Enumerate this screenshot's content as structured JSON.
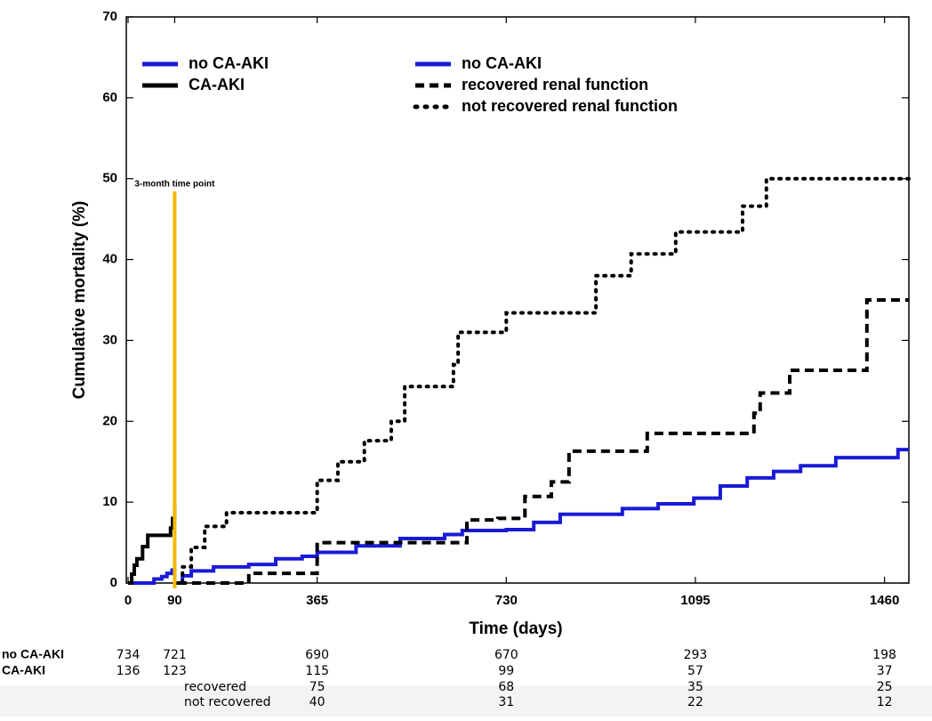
{
  "chart_data": {
    "type": "step",
    "x_label": "Time (days)",
    "y_label": "Cumulative mortality (%)",
    "xlim": [
      0,
      1507
    ],
    "ylim": [
      0,
      70
    ],
    "xticks": [
      0,
      90,
      365,
      730,
      1095,
      1460
    ],
    "yticks": [
      0,
      10,
      20,
      30,
      40,
      50,
      60,
      70
    ],
    "annotation": {
      "text": "3-month time point",
      "x": 90,
      "color": "#f5b800"
    },
    "series": [
      {
        "name": "no CA-AKI",
        "color": "#1a1ad6",
        "style": "solid",
        "x": [
          0,
          40,
          50,
          65,
          75,
          85,
          90
        ],
        "values": [
          0,
          0,
          0.5,
          0.8,
          1.2,
          1.6,
          1.9
        ]
      },
      {
        "name": "CA-AKI",
        "color": "#000000",
        "style": "solid",
        "x": [
          0,
          7,
          12,
          17,
          28,
          38,
          82,
          86,
          90
        ],
        "values": [
          0,
          1.1,
          2.2,
          3.0,
          4.5,
          5.9,
          6.8,
          8.0,
          9.6
        ]
      },
      {
        "name": "no CA-AKI",
        "color": "#1a1ad6",
        "style": "solid",
        "x": [
          90,
          105,
          122,
          165,
          233,
          285,
          336,
          365,
          440,
          525,
          611,
          645,
          730,
          783,
          834,
          954,
          1023,
          1092,
          1143,
          1195,
          1246,
          1298,
          1366,
          1486,
          1507
        ],
        "values": [
          0,
          0.9,
          1.5,
          2.0,
          2.3,
          3.0,
          3.3,
          3.8,
          4.6,
          5.5,
          6.0,
          6.5,
          6.6,
          7.5,
          8.5,
          9.2,
          9.8,
          10.5,
          12.0,
          13.0,
          13.8,
          14.5,
          15.5,
          16.5,
          16.5
        ]
      },
      {
        "name": "recovered renal function",
        "color": "#000000",
        "style": "dashed",
        "x": [
          96,
          233,
          365,
          654,
          714,
          766,
          817,
          851,
          1002,
          1208,
          1220,
          1277,
          1426,
          1507
        ],
        "values": [
          0,
          1.2,
          5.0,
          7.8,
          8.0,
          10.7,
          12.5,
          16.3,
          18.5,
          21.0,
          23.5,
          26.3,
          35.0,
          35.0
        ]
      },
      {
        "name": "not recovered renal function",
        "color": "#000000",
        "style": "dotted",
        "x": [
          90,
          105,
          122,
          148,
          190,
          365,
          405,
          456,
          508,
          534,
          628,
          637,
          730,
          903,
          971,
          1057,
          1186,
          1232,
          1507
        ],
        "values": [
          0,
          2.0,
          4.4,
          7.0,
          8.7,
          12.7,
          15.0,
          17.6,
          20.0,
          24.3,
          27.0,
          31.0,
          33.4,
          38.0,
          40.7,
          43.4,
          46.6,
          50.0,
          50.0
        ]
      }
    ],
    "risk_table": [
      {
        "label": "no CA-AKI",
        "values": [
          734,
          721,
          690,
          670,
          293,
          198
        ]
      },
      {
        "label": "CA-AKI",
        "values": [
          136,
          123,
          115,
          99,
          57,
          37
        ]
      },
      {
        "label": "recovered",
        "values": [
          75,
          68,
          35,
          25
        ]
      },
      {
        "label": "not recovered",
        "values": [
          40,
          31,
          22,
          12
        ]
      }
    ]
  }
}
